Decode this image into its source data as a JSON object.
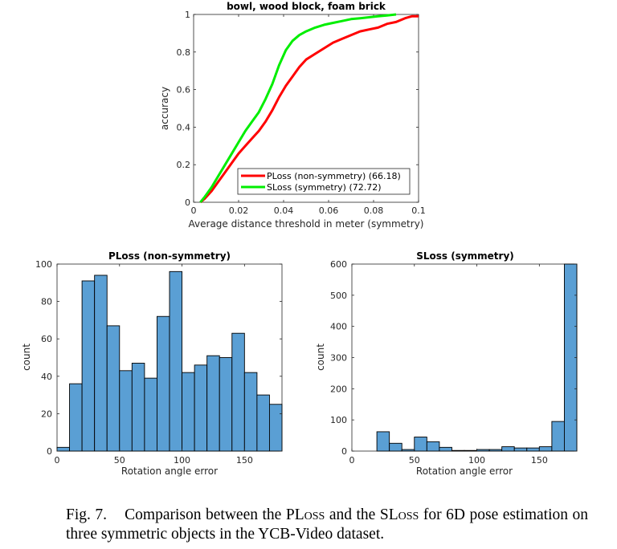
{
  "chart_data": [
    {
      "type": "line",
      "title": "bowl, wood block, foam brick",
      "xlabel": "Average distance threshold in meter (symmetry)",
      "ylabel": "accuracy",
      "xlim": [
        0,
        0.1
      ],
      "ylim": [
        0,
        1
      ],
      "xticks": [
        "0",
        "0.02",
        "0.04",
        "0.06",
        "0.08",
        "0.1"
      ],
      "yticks": [
        "0",
        "0.2",
        "0.4",
        "0.6",
        "0.8",
        "1"
      ],
      "legend_position": "bottom-right",
      "grid": false,
      "series": [
        {
          "name": "PLoss (non-symmetry) (66.18)",
          "color": "#ff0000",
          "x": [
            0.003,
            0.005,
            0.008,
            0.011,
            0.014,
            0.017,
            0.02,
            0.023,
            0.026,
            0.029,
            0.032,
            0.035,
            0.038,
            0.041,
            0.044,
            0.047,
            0.05,
            0.054,
            0.058,
            0.062,
            0.066,
            0.07,
            0.074,
            0.078,
            0.082,
            0.086,
            0.09,
            0.094,
            0.097,
            0.1
          ],
          "y": [
            0.0,
            0.02,
            0.06,
            0.11,
            0.16,
            0.21,
            0.26,
            0.3,
            0.34,
            0.38,
            0.43,
            0.49,
            0.56,
            0.62,
            0.67,
            0.72,
            0.76,
            0.79,
            0.82,
            0.85,
            0.87,
            0.89,
            0.91,
            0.92,
            0.93,
            0.95,
            0.96,
            0.98,
            0.99,
            0.99
          ]
        },
        {
          "name": "SLoss (symmetry) (72.72)",
          "color": "#00ee00",
          "x": [
            0.003,
            0.005,
            0.008,
            0.011,
            0.014,
            0.017,
            0.02,
            0.023,
            0.026,
            0.029,
            0.032,
            0.035,
            0.038,
            0.041,
            0.044,
            0.047,
            0.05,
            0.054,
            0.058,
            0.062,
            0.066,
            0.07,
            0.074,
            0.078,
            0.082,
            0.086,
            0.09
          ],
          "y": [
            0.0,
            0.03,
            0.08,
            0.14,
            0.2,
            0.26,
            0.32,
            0.38,
            0.43,
            0.48,
            0.55,
            0.63,
            0.73,
            0.81,
            0.86,
            0.89,
            0.91,
            0.93,
            0.945,
            0.955,
            0.965,
            0.975,
            0.98,
            0.985,
            0.99,
            0.995,
            1.0
          ]
        }
      ]
    },
    {
      "type": "bar",
      "title": "PLoss (non-symmetry)",
      "xlabel": "Rotation angle error",
      "ylabel": "count",
      "xlim": [
        0,
        180
      ],
      "ylim": [
        0,
        100
      ],
      "xticks": [
        "0",
        "50",
        "100",
        "150"
      ],
      "yticks": [
        "0",
        "20",
        "40",
        "60",
        "80",
        "100"
      ],
      "bin_width": 10,
      "bin_starts": [
        0,
        10,
        20,
        30,
        40,
        50,
        60,
        70,
        80,
        90,
        100,
        110,
        120,
        130,
        140,
        150,
        160,
        170
      ],
      "values": [
        2,
        36,
        91,
        94,
        67,
        43,
        47,
        39,
        72,
        96,
        42,
        46,
        51,
        50,
        63,
        42,
        30,
        25
      ],
      "bar_color": "#5a9fd4"
    },
    {
      "type": "bar",
      "title": "SLoss (symmetry)",
      "xlabel": "Rotation angle error",
      "ylabel": "count",
      "xlim": [
        0,
        180
      ],
      "ylim": [
        0,
        600
      ],
      "xticks": [
        "0",
        "50",
        "100",
        "150"
      ],
      "yticks": [
        "0",
        "100",
        "200",
        "300",
        "400",
        "500",
        "600"
      ],
      "bin_width": 10,
      "bin_starts": [
        20,
        30,
        40,
        50,
        60,
        70,
        80,
        90,
        100,
        110,
        120,
        130,
        140,
        150,
        160,
        170
      ],
      "values": [
        62,
        25,
        5,
        45,
        30,
        12,
        2,
        2,
        5,
        5,
        14,
        10,
        10,
        14,
        95,
        600
      ],
      "bar_color": "#5a9fd4"
    }
  ],
  "caption": {
    "label": "Fig. 7.",
    "text_1": "Comparison between the ",
    "ploss": "PLoss",
    "text_2": " and the ",
    "sloss": "SLoss",
    "text_3": " for 6D pose estimation on three symmetric objects in the YCB-Video dataset."
  }
}
